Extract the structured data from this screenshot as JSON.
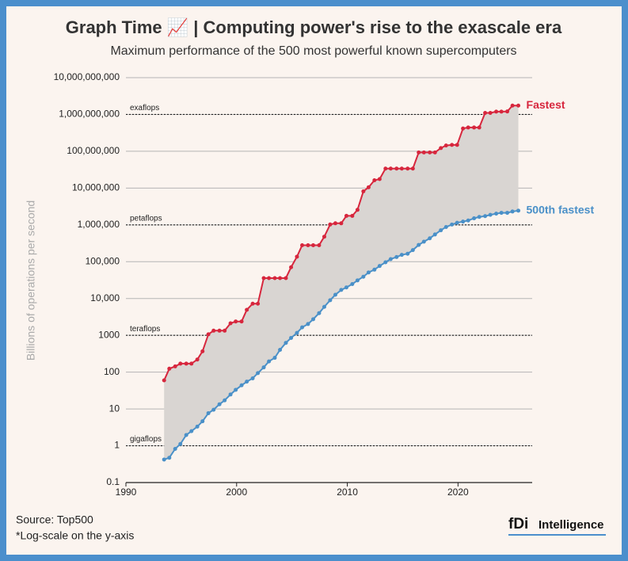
{
  "chart_data": {
    "type": "line",
    "title": "Graph Time 📈 | Computing power's rise to the exascale era",
    "subtitle": "Maximum performance of the 500 most powerful known supercomputers",
    "y_label": "Billions of operations per second",
    "log_y": true,
    "grid": true,
    "xlim": [
      1990,
      2026.7
    ],
    "xticks": [
      1990,
      2000,
      2010,
      2020
    ],
    "ylim": [
      0.1,
      10000000000
    ],
    "yticks": [
      0.1,
      1,
      10,
      100,
      1000,
      {
        "value": 10000,
        "label": "10,000"
      },
      {
        "value": 100000,
        "label": "100,000"
      },
      {
        "value": 1000000,
        "label": "1,000,000"
      },
      {
        "value": 10000000,
        "label": "10,000,000"
      },
      {
        "value": 100000000,
        "label": "100,000,000"
      },
      {
        "value": 1000000000,
        "label": "1,000,000,000"
      },
      {
        "value": 10000000000,
        "label": "10,000,000,000"
      }
    ],
    "reference_lines": [
      {
        "value": 1,
        "label": "gigaflops"
      },
      {
        "value": 1000,
        "label": "teraflops"
      },
      {
        "value": 1000000,
        "label": "petaflops"
      },
      {
        "value": 1000000000,
        "label": "exaflops"
      }
    ],
    "area_color": "#d9d5d2",
    "x": [
      1993.45,
      1993.92,
      1994.45,
      1994.92,
      1995.45,
      1995.92,
      1996.45,
      1996.92,
      1997.45,
      1997.92,
      1998.45,
      1998.92,
      1999.45,
      1999.92,
      2000.45,
      2000.92,
      2001.45,
      2001.92,
      2002.45,
      2002.92,
      2003.45,
      2003.92,
      2004.45,
      2004.92,
      2005.45,
      2005.92,
      2006.45,
      2006.92,
      2007.45,
      2007.92,
      2008.45,
      2008.92,
      2009.45,
      2009.92,
      2010.45,
      2010.92,
      2011.45,
      2011.92,
      2012.45,
      2012.92,
      2013.45,
      2013.92,
      2014.45,
      2014.92,
      2015.45,
      2015.92,
      2016.45,
      2016.92,
      2017.45,
      2017.92,
      2018.45,
      2018.92,
      2019.45,
      2019.92,
      2020.45,
      2020.92,
      2021.45,
      2021.92,
      2022.45,
      2022.92,
      2023.45,
      2023.92,
      2024.45,
      2024.92,
      2025.45
    ],
    "series": [
      {
        "name": "Fastest",
        "color": "#d7263d",
        "values": [
          59.7,
          124,
          143.4,
          170,
          170,
          170,
          220.4,
          368.2,
          1068,
          1338,
          1338,
          1338,
          2121,
          2379,
          2379,
          4938,
          7226,
          7226,
          35860,
          35860,
          35860,
          35860,
          35860,
          70720,
          136800,
          280600,
          280600,
          280600,
          280600,
          478200,
          1026000,
          1105000,
          1105000,
          1759000,
          1759000,
          2566000,
          8162000,
          10510000,
          16320000,
          17590000,
          33860000,
          33860000,
          33860000,
          33860000,
          33860000,
          33860000,
          93010000,
          93010000,
          93010000,
          93010000,
          122300000,
          143500000,
          148600000,
          148600000,
          415500000,
          442000000,
          442000000,
          442000000,
          1102000000,
          1102000000,
          1194000000,
          1194000000,
          1206000000,
          1742000000,
          1742000000
        ]
      },
      {
        "name": "500th fastest",
        "color": "#4a90c8",
        "values": [
          0.422,
          0.472,
          0.822,
          1.114,
          1.96,
          2.49,
          3.31,
          4.62,
          7.67,
          9.51,
          13.39,
          17.1,
          24.73,
          33.1,
          43.82,
          55.1,
          67.78,
          94.3,
          134.3,
          195.8,
          245.1,
          403.4,
          624,
          850.6,
          1166,
          1646,
          2026,
          2737,
          4005,
          5929,
          9000,
          12640,
          17090,
          20050,
          24670,
          31120,
          39100,
          50900,
          60800,
          76500,
          96600,
          117800,
          133700,
          153400,
          164800,
          206300,
          285900,
          349300,
          432200,
          548700,
          715600,
          874800,
          1022000,
          1142000,
          1228000,
          1317000,
          1511000,
          1646000,
          1731000,
          1873000,
          2020000,
          2130000,
          2130000,
          2310000,
          2440000
        ]
      }
    ]
  },
  "footer": {
    "source": "Source: Top500",
    "note": "*Log-scale on the y-axis",
    "logo_mark": "fDi",
    "logo_text": "Intelligence"
  }
}
